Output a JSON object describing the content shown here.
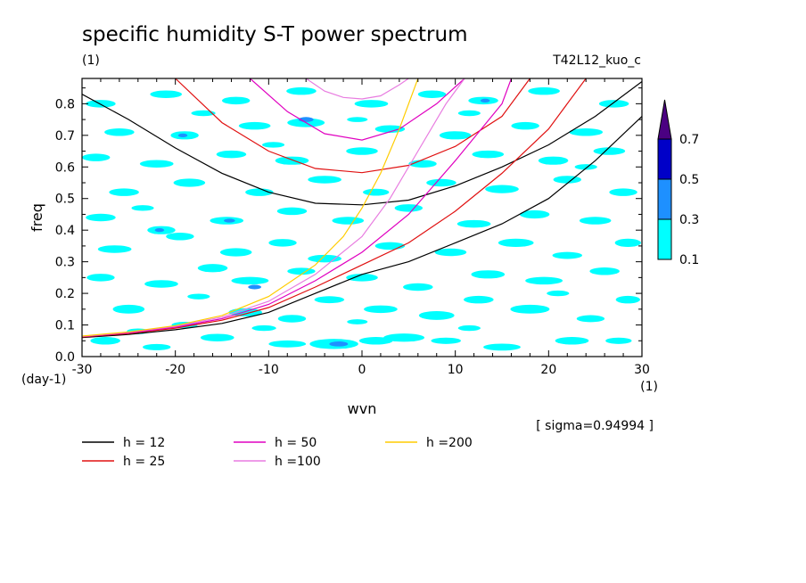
{
  "chart_data": {
    "type": "heatmap",
    "title": "specific humidity S-T power spectrum",
    "subtitle": "(1)",
    "run_label": "T42L12_kuo_c",
    "xlabel": "wvn",
    "ylabel": "freq",
    "x_unit": "(1)",
    "y_unit": "(day-1)",
    "xlim": [
      -30,
      30
    ],
    "ylim": [
      0,
      0.88
    ],
    "x_ticks": [
      -30,
      -20,
      -10,
      0,
      10,
      20,
      30
    ],
    "x_tick_labels": [
      "-30",
      "-20",
      "-10",
      "0",
      "10",
      "20",
      "30"
    ],
    "y_ticks": [
      0,
      0.1,
      0.2,
      0.3,
      0.4,
      0.5,
      0.6,
      0.7,
      0.8
    ],
    "y_tick_labels": [
      "0.0",
      "0.1",
      "0.2",
      "0.3",
      "0.4",
      "0.5",
      "0.6",
      "0.7",
      "0.8"
    ],
    "sigma_note": "[ sigma=0.94994 ]",
    "colorbar": {
      "levels": [
        0.1,
        0.3,
        0.5,
        0.7
      ],
      "labels": [
        "0.1",
        "0.3",
        "0.5",
        "0.7"
      ],
      "colors": [
        "#00ffff",
        "#1e90ff",
        "#0000c8",
        "#4b0082"
      ]
    },
    "spots": [
      [
        -27.5,
        0.05,
        1.6,
        0.012,
        1
      ],
      [
        -22.0,
        0.03,
        1.5,
        0.01,
        1
      ],
      [
        -15.5,
        0.06,
        1.8,
        0.012,
        1
      ],
      [
        -8.0,
        0.04,
        2.0,
        0.011,
        1
      ],
      [
        -3.0,
        0.04,
        2.6,
        0.016,
        1
      ],
      [
        -2.5,
        0.04,
        1.0,
        0.008,
        2
      ],
      [
        1.5,
        0.05,
        1.8,
        0.012,
        1
      ],
      [
        4.5,
        0.06,
        2.2,
        0.013,
        1
      ],
      [
        9.0,
        0.05,
        1.6,
        0.01,
        1
      ],
      [
        15.0,
        0.03,
        2.0,
        0.011,
        1
      ],
      [
        22.5,
        0.05,
        1.8,
        0.012,
        1
      ],
      [
        27.5,
        0.05,
        1.4,
        0.01,
        1
      ],
      [
        -25.0,
        0.15,
        1.7,
        0.014,
        1
      ],
      [
        -19.0,
        0.1,
        1.4,
        0.01,
        1
      ],
      [
        -12.5,
        0.14,
        1.8,
        0.013,
        1
      ],
      [
        -7.5,
        0.12,
        1.5,
        0.012,
        1
      ],
      [
        -3.5,
        0.18,
        1.6,
        0.011,
        1
      ],
      [
        2.0,
        0.15,
        1.8,
        0.012,
        1
      ],
      [
        8.0,
        0.13,
        1.9,
        0.014,
        1
      ],
      [
        12.5,
        0.18,
        1.6,
        0.012,
        1
      ],
      [
        18.0,
        0.15,
        2.1,
        0.014,
        1
      ],
      [
        24.5,
        0.12,
        1.5,
        0.011,
        1
      ],
      [
        28.5,
        0.18,
        1.3,
        0.012,
        1
      ],
      [
        -28.0,
        0.25,
        1.5,
        0.012,
        1
      ],
      [
        -21.5,
        0.23,
        1.8,
        0.012,
        1
      ],
      [
        -16.0,
        0.28,
        1.6,
        0.013,
        1
      ],
      [
        -12.0,
        0.24,
        2.0,
        0.012,
        1
      ],
      [
        -11.5,
        0.22,
        0.7,
        0.007,
        2
      ],
      [
        -6.5,
        0.27,
        1.5,
        0.011,
        1
      ],
      [
        0.0,
        0.25,
        1.7,
        0.012,
        1
      ],
      [
        6.0,
        0.22,
        1.6,
        0.012,
        1
      ],
      [
        13.5,
        0.26,
        1.8,
        0.013,
        1
      ],
      [
        19.5,
        0.24,
        2.0,
        0.012,
        1
      ],
      [
        26.0,
        0.27,
        1.6,
        0.012,
        1
      ],
      [
        -26.5,
        0.34,
        1.8,
        0.012,
        1
      ],
      [
        -19.5,
        0.38,
        1.5,
        0.012,
        1
      ],
      [
        -13.5,
        0.33,
        1.7,
        0.013,
        1
      ],
      [
        -8.5,
        0.36,
        1.5,
        0.012,
        1
      ],
      [
        -4.0,
        0.31,
        1.8,
        0.012,
        1
      ],
      [
        3.0,
        0.35,
        1.6,
        0.012,
        1
      ],
      [
        9.5,
        0.33,
        1.7,
        0.012,
        1
      ],
      [
        16.5,
        0.36,
        1.9,
        0.013,
        1
      ],
      [
        22.0,
        0.32,
        1.6,
        0.011,
        1
      ],
      [
        28.5,
        0.36,
        1.4,
        0.013,
        1
      ],
      [
        -28.0,
        0.44,
        1.6,
        0.012,
        1
      ],
      [
        -21.5,
        0.4,
        1.5,
        0.013,
        1
      ],
      [
        -21.7,
        0.4,
        0.5,
        0.006,
        2
      ],
      [
        -14.5,
        0.43,
        1.8,
        0.012,
        1
      ],
      [
        -14.2,
        0.43,
        0.6,
        0.006,
        2
      ],
      [
        -7.5,
        0.46,
        1.6,
        0.012,
        1
      ],
      [
        -1.5,
        0.43,
        1.7,
        0.012,
        1
      ],
      [
        5.0,
        0.47,
        1.5,
        0.012,
        1
      ],
      [
        12.0,
        0.42,
        1.8,
        0.012,
        1
      ],
      [
        18.5,
        0.45,
        1.6,
        0.013,
        1
      ],
      [
        25.0,
        0.43,
        1.7,
        0.012,
        1
      ],
      [
        -25.5,
        0.52,
        1.6,
        0.012,
        1
      ],
      [
        -18.5,
        0.55,
        1.7,
        0.013,
        1
      ],
      [
        -11.0,
        0.52,
        1.5,
        0.012,
        1
      ],
      [
        -4.0,
        0.56,
        1.8,
        0.012,
        1
      ],
      [
        1.5,
        0.52,
        1.4,
        0.011,
        1
      ],
      [
        8.5,
        0.55,
        1.6,
        0.012,
        1
      ],
      [
        15.0,
        0.53,
        1.8,
        0.013,
        1
      ],
      [
        22.0,
        0.56,
        1.5,
        0.012,
        1
      ],
      [
        28.0,
        0.52,
        1.5,
        0.012,
        1
      ],
      [
        -28.5,
        0.63,
        1.5,
        0.012,
        1
      ],
      [
        -22.0,
        0.61,
        1.8,
        0.012,
        1
      ],
      [
        -14.0,
        0.64,
        1.6,
        0.012,
        1
      ],
      [
        -7.5,
        0.62,
        1.8,
        0.013,
        1
      ],
      [
        0.0,
        0.65,
        1.7,
        0.012,
        1
      ],
      [
        6.5,
        0.61,
        1.5,
        0.012,
        1
      ],
      [
        13.5,
        0.64,
        1.7,
        0.012,
        1
      ],
      [
        20.5,
        0.62,
        1.6,
        0.013,
        1
      ],
      [
        26.5,
        0.65,
        1.7,
        0.012,
        1
      ],
      [
        -26.0,
        0.71,
        1.6,
        0.012,
        1
      ],
      [
        -19.0,
        0.7,
        1.5,
        0.013,
        1
      ],
      [
        -19.2,
        0.7,
        0.5,
        0.006,
        2
      ],
      [
        -11.5,
        0.73,
        1.7,
        0.012,
        1
      ],
      [
        -6.0,
        0.74,
        2.0,
        0.014,
        1
      ],
      [
        -6.0,
        0.75,
        0.8,
        0.008,
        2
      ],
      [
        3.0,
        0.72,
        1.6,
        0.012,
        1
      ],
      [
        10.0,
        0.7,
        1.7,
        0.013,
        1
      ],
      [
        17.5,
        0.73,
        1.5,
        0.012,
        1
      ],
      [
        24.0,
        0.71,
        1.8,
        0.012,
        1
      ],
      [
        -28.0,
        0.8,
        1.6,
        0.012,
        1
      ],
      [
        -21.0,
        0.83,
        1.7,
        0.012,
        1
      ],
      [
        -13.5,
        0.81,
        1.5,
        0.012,
        1
      ],
      [
        -6.5,
        0.84,
        1.6,
        0.012,
        1
      ],
      [
        1.0,
        0.8,
        1.8,
        0.012,
        1
      ],
      [
        7.5,
        0.83,
        1.5,
        0.012,
        1
      ],
      [
        13.0,
        0.81,
        1.6,
        0.012,
        1
      ],
      [
        13.2,
        0.81,
        0.5,
        0.006,
        2
      ],
      [
        19.5,
        0.84,
        1.7,
        0.012,
        1
      ],
      [
        27.0,
        0.8,
        1.6,
        0.012,
        1
      ],
      [
        -24.0,
        0.08,
        1.2,
        0.009,
        1
      ],
      [
        -10.5,
        0.09,
        1.3,
        0.009,
        1
      ],
      [
        11.5,
        0.09,
        1.2,
        0.009,
        1
      ],
      [
        -17.5,
        0.19,
        1.2,
        0.009,
        1
      ],
      [
        -0.5,
        0.11,
        1.1,
        0.008,
        1
      ],
      [
        21.0,
        0.2,
        1.2,
        0.009,
        1
      ],
      [
        -23.5,
        0.47,
        1.2,
        0.009,
        1
      ],
      [
        -9.5,
        0.67,
        1.2,
        0.009,
        1
      ],
      [
        11.5,
        0.77,
        1.2,
        0.009,
        1
      ],
      [
        24.0,
        0.6,
        1.2,
        0.009,
        1
      ],
      [
        -0.5,
        0.75,
        1.1,
        0.008,
        1
      ],
      [
        -17.0,
        0.77,
        1.3,
        0.009,
        1
      ]
    ],
    "series": [
      {
        "name": "h = 12",
        "color": "#000000",
        "branches": [
          [
            [
              -30,
              0.06
            ],
            [
              -25,
              0.07
            ],
            [
              -20,
              0.085
            ],
            [
              -15,
              0.105
            ],
            [
              -10,
              0.14
            ],
            [
              -5,
              0.2
            ],
            [
              0,
              0.26
            ],
            [
              5,
              0.3
            ],
            [
              10,
              0.36
            ],
            [
              15,
              0.42
            ],
            [
              20,
              0.5
            ],
            [
              25,
              0.62
            ],
            [
              30,
              0.76
            ]
          ],
          [
            [
              -30,
              0.83
            ],
            [
              -25,
              0.75
            ],
            [
              -20,
              0.66
            ],
            [
              -15,
              0.58
            ],
            [
              -10,
              0.52
            ],
            [
              -5,
              0.485
            ],
            [
              0,
              0.48
            ],
            [
              5,
              0.495
            ],
            [
              10,
              0.54
            ],
            [
              15,
              0.6
            ],
            [
              20,
              0.67
            ],
            [
              25,
              0.76
            ],
            [
              30,
              0.87
            ]
          ]
        ]
      },
      {
        "name": "h = 25",
        "color": "#e01010",
        "branches": [
          [
            [
              -30,
              0.062
            ],
            [
              -25,
              0.073
            ],
            [
              -20,
              0.09
            ],
            [
              -15,
              0.115
            ],
            [
              -10,
              0.155
            ],
            [
              -5,
              0.22
            ],
            [
              0,
              0.29
            ],
            [
              5,
              0.36
            ],
            [
              10,
              0.46
            ],
            [
              15,
              0.58
            ],
            [
              20,
              0.72
            ],
            [
              24,
              0.88
            ]
          ],
          [
            [
              -20,
              0.88
            ],
            [
              -15,
              0.74
            ],
            [
              -10,
              0.65
            ],
            [
              -5,
              0.595
            ],
            [
              0,
              0.582
            ],
            [
              5,
              0.605
            ],
            [
              10,
              0.665
            ],
            [
              15,
              0.76
            ],
            [
              18,
              0.88
            ]
          ]
        ]
      },
      {
        "name": "h = 50",
        "color": "#e000c0",
        "branches": [
          [
            [
              -30,
              0.063
            ],
            [
              -25,
              0.075
            ],
            [
              -20,
              0.093
            ],
            [
              -15,
              0.12
            ],
            [
              -10,
              0.165
            ],
            [
              -5,
              0.24
            ],
            [
              0,
              0.33
            ],
            [
              5,
              0.45
            ],
            [
              10,
              0.62
            ],
            [
              15,
              0.8
            ],
            [
              16,
              0.88
            ]
          ],
          [
            [
              -12,
              0.88
            ],
            [
              -8,
              0.775
            ],
            [
              -4,
              0.705
            ],
            [
              0,
              0.685
            ],
            [
              4,
              0.72
            ],
            [
              8,
              0.8
            ],
            [
              11,
              0.88
            ]
          ]
        ]
      },
      {
        "name": "h =100",
        "color": "#e87ce0",
        "branches": [
          [
            [
              -30,
              0.064
            ],
            [
              -25,
              0.077
            ],
            [
              -20,
              0.096
            ],
            [
              -15,
              0.125
            ],
            [
              -10,
              0.175
            ],
            [
              -5,
              0.26
            ],
            [
              0,
              0.38
            ],
            [
              3,
              0.5
            ],
            [
              6,
              0.65
            ],
            [
              9,
              0.8
            ],
            [
              11,
              0.88
            ]
          ],
          [
            [
              -6,
              0.88
            ],
            [
              -4,
              0.84
            ],
            [
              -2,
              0.82
            ],
            [
              0,
              0.815
            ],
            [
              2,
              0.825
            ],
            [
              4,
              0.86
            ],
            [
              5,
              0.88
            ]
          ]
        ]
      },
      {
        "name": "h =200",
        "color": "#ffcc00",
        "branches": [
          [
            [
              -30,
              0.065
            ],
            [
              -25,
              0.078
            ],
            [
              -20,
              0.098
            ],
            [
              -15,
              0.13
            ],
            [
              -10,
              0.19
            ],
            [
              -5,
              0.29
            ],
            [
              -2,
              0.38
            ],
            [
              0,
              0.47
            ],
            [
              2,
              0.58
            ],
            [
              4,
              0.72
            ],
            [
              6,
              0.88
            ]
          ]
        ]
      }
    ]
  }
}
